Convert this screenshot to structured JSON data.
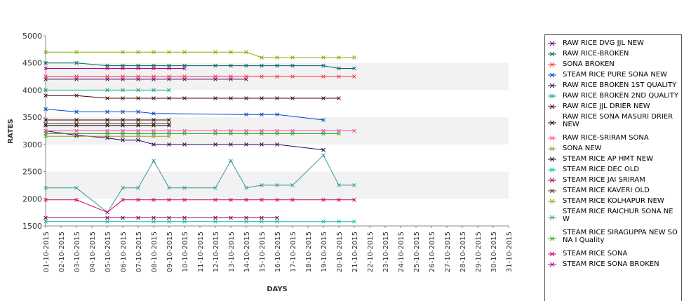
{
  "chart_data": {
    "type": "line",
    "title": "",
    "xlabel": "DAYS",
    "ylabel": "RATES",
    "ylim": [
      1500,
      5000
    ],
    "yticks": [
      1500,
      2000,
      2500,
      3000,
      3500,
      4000,
      4500,
      5000
    ],
    "grid": false,
    "legend": "right",
    "categories": [
      "01-10-2015",
      "02-10-2015",
      "03-10-2015",
      "04-10-2015",
      "05-10-2015",
      "06-10-2015",
      "07-10-2015",
      "08-10-2015",
      "09-10-2015",
      "10-10-2015",
      "11-10-2015",
      "12-10-2015",
      "13-10-2015",
      "14-10-2015",
      "15-10-2015",
      "16-10-2015",
      "17-10-2015",
      "18-10-2015",
      "19-10-2015",
      "20-10-2015",
      "21-10-2015",
      "22-10-2015",
      "23-10-2015",
      "24-10-2015",
      "25-10-2015",
      "26-10-2015",
      "27-10-2015",
      "28-10-2015",
      "29-10-2015",
      "30-10-2015",
      "31-10-2015"
    ],
    "series": [
      {
        "name": "RAW RICE DVG JJL NEW",
        "color": "#55007f",
        "values": [
          4200,
          null,
          4200,
          null,
          4200,
          4200,
          4200,
          4200,
          4200,
          4200,
          null,
          4200,
          4200,
          4200,
          null,
          null,
          null,
          null,
          null,
          null,
          null,
          null,
          null,
          null,
          null,
          null,
          null,
          null,
          null,
          null,
          null
        ]
      },
      {
        "name": "RAW RICE-BROKEN",
        "color": "#006666",
        "values": [
          4500,
          null,
          4500,
          null,
          4450,
          4450,
          4450,
          4450,
          4450,
          4450,
          null,
          4450,
          4450,
          4450,
          4450,
          4450,
          4450,
          null,
          4450,
          4400,
          4400,
          null,
          null,
          null,
          null,
          null,
          null,
          null,
          null,
          null,
          null
        ]
      },
      {
        "name": "SONA BROKEN",
        "color": "#ff3333",
        "values": [
          4250,
          null,
          4250,
          null,
          4250,
          4250,
          4250,
          4250,
          4250,
          4250,
          null,
          4250,
          4250,
          4250,
          4250,
          4250,
          4250,
          null,
          4250,
          4250,
          4250,
          null,
          null,
          null,
          null,
          null,
          null,
          null,
          null,
          null,
          null
        ]
      },
      {
        "name": "STEAM RICE PURE SONA NEW",
        "color": "#0044cc",
        "values": [
          3650,
          null,
          3600,
          null,
          3600,
          3600,
          3600,
          3570,
          null,
          null,
          null,
          null,
          null,
          3550,
          3550,
          3550,
          null,
          null,
          3450,
          null,
          null,
          null,
          null,
          null,
          null,
          null,
          null,
          null,
          null,
          null,
          null
        ]
      },
      {
        "name": "RAW RICE BROKEN 1ST QUALITY",
        "color": "#330066",
        "values": [
          3250,
          null,
          3170,
          null,
          3120,
          3080,
          3080,
          3000,
          3000,
          3000,
          null,
          3000,
          3000,
          3000,
          3000,
          3000,
          null,
          null,
          2900,
          null,
          null,
          null,
          null,
          null,
          null,
          null,
          null,
          null,
          null,
          null,
          null
        ]
      },
      {
        "name": "RAW RICE BROKEN 2ND QUALITY",
        "color": "#00aa88",
        "values": [
          4000,
          null,
          null,
          null,
          4000,
          4000,
          4000,
          4000,
          4000,
          null,
          null,
          null,
          null,
          null,
          null,
          null,
          null,
          null,
          null,
          null,
          null,
          null,
          null,
          null,
          null,
          null,
          null,
          null,
          null,
          null,
          null
        ]
      },
      {
        "name": "RAW RICE JJL DRIER NEW",
        "color": "#440011",
        "values": [
          3900,
          null,
          3900,
          null,
          3850,
          3850,
          3850,
          3850,
          3850,
          3850,
          null,
          3850,
          3850,
          3850,
          3850,
          3850,
          3850,
          null,
          3850,
          3850,
          null,
          null,
          null,
          null,
          null,
          null,
          null,
          null,
          null,
          null,
          null
        ]
      },
      {
        "name": "RAW RICE SONA MASURI DRIER NEW",
        "color": "#330000",
        "values": [
          3450,
          null,
          3450,
          null,
          3450,
          3450,
          3450,
          3450,
          3450,
          null,
          null,
          null,
          null,
          null,
          null,
          null,
          null,
          null,
          null,
          null,
          null,
          null,
          null,
          null,
          null,
          null,
          null,
          null,
          null,
          null,
          null
        ]
      },
      {
        "name": "RAW RICE-SRIRAM SONA",
        "color": "#ff44aa",
        "values": [
          3250,
          null,
          3250,
          null,
          3250,
          3250,
          3250,
          3250,
          3250,
          3250,
          null,
          3250,
          3250,
          3250,
          3250,
          3250,
          3250,
          null,
          3250,
          3250,
          3250,
          null,
          null,
          null,
          null,
          null,
          null,
          null,
          null,
          null,
          null
        ]
      },
      {
        "name": "SONA NEW",
        "color": "#999933",
        "values": [
          3150,
          null,
          3150,
          null,
          3150,
          3150,
          3150,
          3150,
          3150,
          null,
          null,
          null,
          null,
          null,
          null,
          null,
          null,
          null,
          null,
          null,
          null,
          null,
          null,
          null,
          null,
          null,
          null,
          null,
          null,
          null,
          null
        ]
      },
      {
        "name": "STEAM RICE AP HMT NEW",
        "color": "#111111",
        "values": [
          3350,
          null,
          3350,
          null,
          3350,
          3350,
          3350,
          3350,
          3350,
          null,
          null,
          null,
          null,
          null,
          null,
          null,
          null,
          null,
          null,
          null,
          null,
          null,
          null,
          null,
          null,
          null,
          null,
          null,
          null,
          null,
          null
        ]
      },
      {
        "name": "STEAM RICE DEC OLD",
        "color": "#00bbaa",
        "values": [
          1580,
          null,
          null,
          null,
          1580,
          null,
          null,
          1580,
          1580,
          1580,
          null,
          1580,
          null,
          1580,
          1580,
          1580,
          null,
          null,
          1580,
          1580,
          1580,
          null,
          null,
          null,
          null,
          null,
          null,
          null,
          null,
          null,
          null
        ]
      },
      {
        "name": "STEAM RICE JAI SRIRAM",
        "color": "#990044",
        "values": [
          1650,
          null,
          null,
          null,
          1650,
          1650,
          1650,
          1650,
          1650,
          1650,
          null,
          1650,
          1650,
          1650,
          1650,
          1650,
          null,
          null,
          null,
          null,
          null,
          null,
          null,
          null,
          null,
          null,
          null,
          null,
          null,
          null,
          null
        ]
      },
      {
        "name": "STEAM RICE KAVERI OLD",
        "color": "#663322",
        "values": [
          3380,
          null,
          3380,
          null,
          3380,
          3380,
          3380,
          3380,
          3380,
          null,
          null,
          null,
          null,
          null,
          null,
          null,
          null,
          null,
          null,
          null,
          null,
          null,
          null,
          null,
          null,
          null,
          null,
          null,
          null,
          null,
          null
        ]
      },
      {
        "name": "STEAM RICE KOLHAPUR NEW",
        "color": "#88aa00",
        "values": [
          4700,
          null,
          4700,
          null,
          null,
          4700,
          4700,
          4700,
          4700,
          4700,
          null,
          4700,
          4700,
          4700,
          4600,
          4600,
          4600,
          null,
          4600,
          4600,
          4600,
          null,
          null,
          null,
          null,
          null,
          null,
          null,
          null,
          null,
          null
        ]
      },
      {
        "name": "STEAM RICE RAICHUR SONA NEW",
        "color": "#339999",
        "values": [
          2200,
          null,
          2200,
          null,
          1750,
          2200,
          2200,
          2700,
          2200,
          2200,
          null,
          2200,
          2700,
          2200,
          2250,
          2250,
          2250,
          null,
          2800,
          2250,
          2250,
          null,
          null,
          null,
          null,
          null,
          null,
          null,
          null,
          null,
          null
        ]
      },
      {
        "name": "STEAM RICE SIRAGUPPA NEW SONA I Quality",
        "color": "#22aa22",
        "values": [
          3200,
          null,
          null,
          null,
          3200,
          3200,
          3200,
          3200,
          3200,
          3200,
          null,
          3200,
          3200,
          3200,
          3200,
          3200,
          3200,
          null,
          3200,
          3200,
          null,
          null,
          null,
          null,
          null,
          null,
          null,
          null,
          null,
          null,
          null
        ]
      },
      {
        "name": "STEAM RICE SONA",
        "color": "#cc0066",
        "values": [
          1980,
          null,
          1980,
          null,
          1750,
          1980,
          1980,
          1980,
          1980,
          1980,
          null,
          1980,
          1980,
          1980,
          1980,
          1980,
          1980,
          null,
          1980,
          1980,
          1980,
          null,
          null,
          null,
          null,
          null,
          null,
          null,
          null,
          null,
          null
        ]
      },
      {
        "name": "STEAM RICE SONA BROKEN",
        "color": "#aa0088",
        "values": [
          4400,
          null,
          null,
          null,
          4400,
          4400,
          4400,
          4400,
          4400,
          4400,
          null,
          null,
          null,
          null,
          null,
          null,
          null,
          null,
          null,
          null,
          null,
          null,
          null,
          null,
          null,
          null,
          null,
          null,
          null,
          null,
          null
        ]
      }
    ]
  }
}
